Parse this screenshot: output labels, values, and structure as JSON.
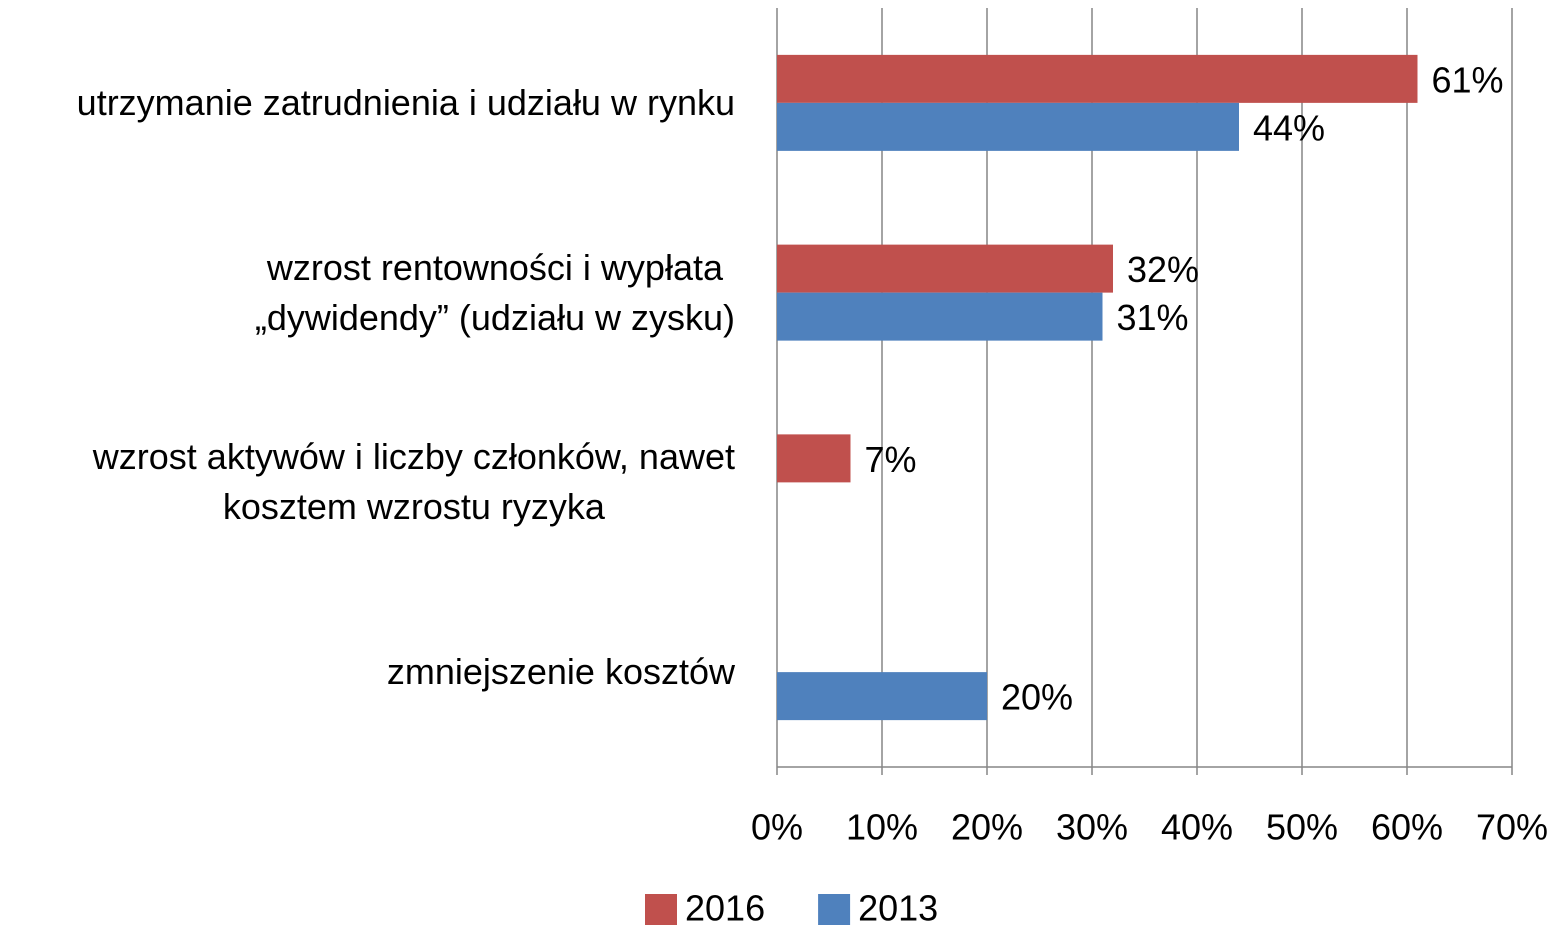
{
  "chart_data": {
    "type": "hbar",
    "categories": [
      "utrzymanie zatrudnienia i udziału w rynku",
      "wzrost rentowności i wypłata \n„dywidendy” (udziału w zysku)",
      "wzrost aktywów i liczby członków, nawet\nkosztem wzrostu ryzyka",
      "zmniejszenie kosztów"
    ],
    "series": [
      {
        "name": "2016",
        "color": "#c0504d",
        "values": [
          61,
          32,
          7,
          null
        ],
        "value_labels": [
          "61%",
          "32%",
          "7%",
          null
        ]
      },
      {
        "name": "2013",
        "color": "#4f81bd",
        "values": [
          44,
          31,
          null,
          20
        ],
        "value_labels": [
          "44%",
          "31%",
          null,
          "20%"
        ]
      }
    ],
    "xlim": [
      0,
      70
    ],
    "xticks": [
      {
        "value": 0,
        "label": "0%"
      },
      {
        "value": 10,
        "label": "10%"
      },
      {
        "value": 20,
        "label": "20%"
      },
      {
        "value": 30,
        "label": "30%"
      },
      {
        "value": 40,
        "label": "40%"
      },
      {
        "value": 50,
        "label": "50%"
      },
      {
        "value": 60,
        "label": "60%"
      },
      {
        "value": 70,
        "label": "70%"
      }
    ],
    "grid": true,
    "legend": "bottom"
  }
}
